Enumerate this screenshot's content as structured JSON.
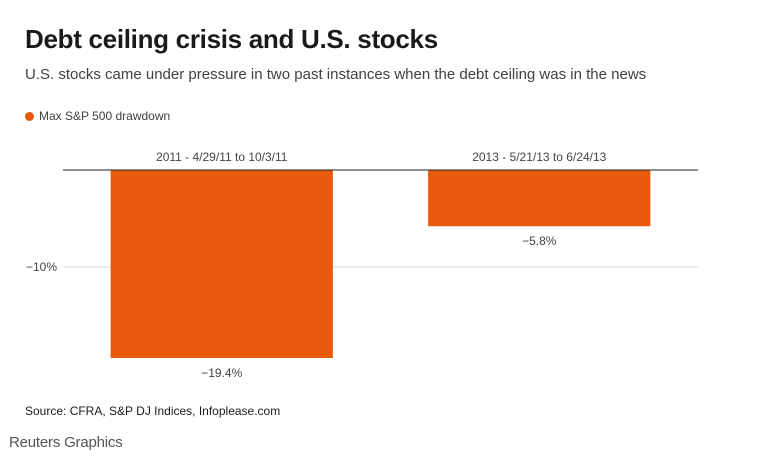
{
  "title": "Debt ceiling crisis and U.S. stocks",
  "subtitle": "U.S. stocks came under pressure in two past instances when the debt ceiling was in the news",
  "legend_label": "Max S&P 500 drawdown",
  "source": "Source: CFRA, S&P DJ Indices, Infoplease.com",
  "brand": "Reuters Graphics",
  "colors": {
    "bar": "#e8590c",
    "gridline": "#d9d9d9",
    "zeroline": "#222222",
    "label": "#444444"
  },
  "chart_data": {
    "type": "bar",
    "categories": [
      "2011 - 4/29/11 to 10/3/11",
      "2013 - 5/21/13 to 6/24/13"
    ],
    "series": [
      {
        "name": "Max S&P 500 drawdown",
        "values": [
          -19.4,
          -5.8
        ]
      }
    ],
    "value_labels": [
      "−19.4%",
      "−5.8%"
    ],
    "y_ticks": [
      {
        "value": -10,
        "label": "−10%"
      }
    ],
    "ylim": [
      -19.4,
      0
    ],
    "xlabel": "",
    "ylabel": "",
    "legend_position": "top-left",
    "grid": true
  }
}
